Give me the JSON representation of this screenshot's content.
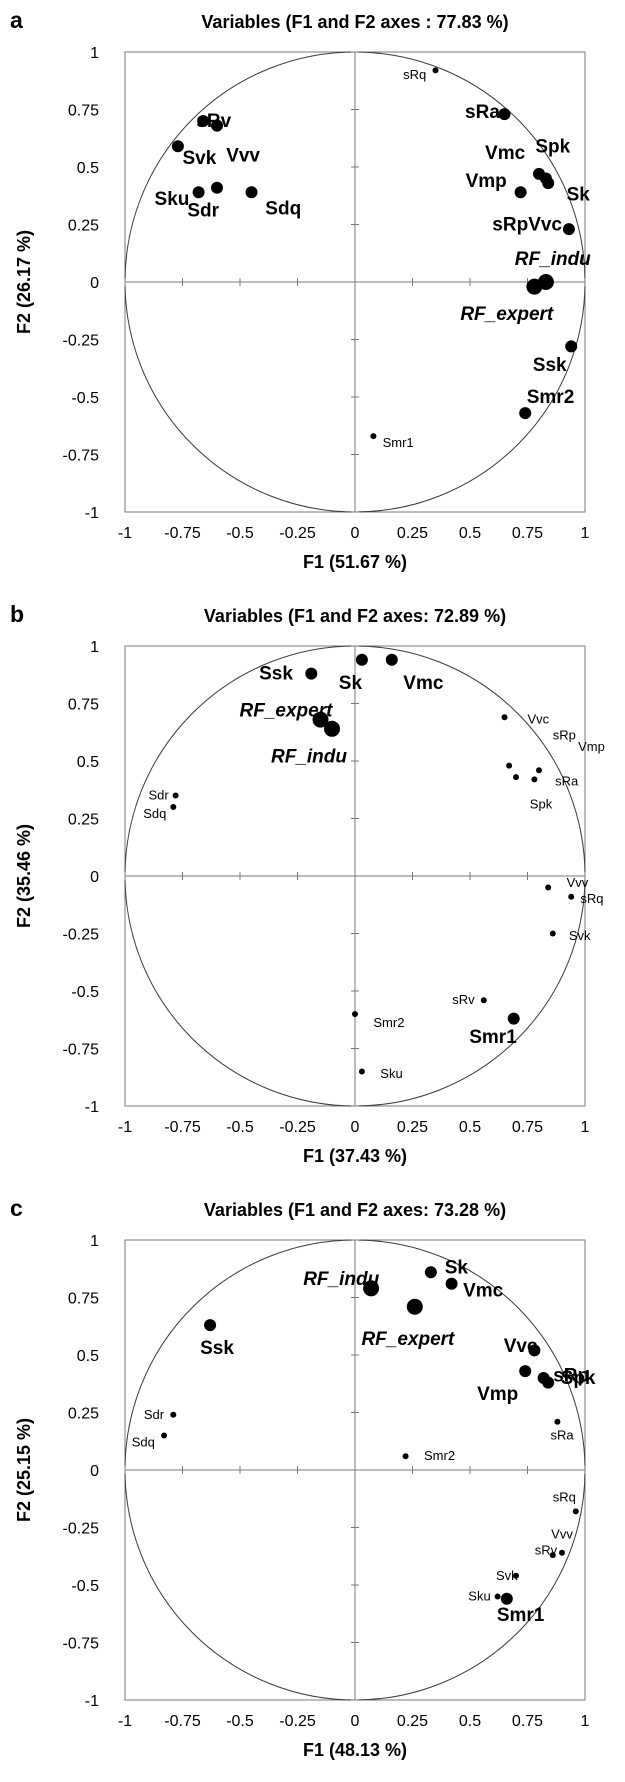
{
  "chart_data": [
    {
      "type": "scatter",
      "panel_letter": "a",
      "title": "Variables (F1 and F2 axes : 77.83 %)",
      "xlabel": "F1 (51.67 %)",
      "ylabel": "F2 (26.17 %)",
      "xlim": [
        -1,
        1
      ],
      "ylim": [
        -1,
        1
      ],
      "x_ticks": [
        "-1",
        "-0.75",
        "-0.5",
        "-0.25",
        "0",
        "0.25",
        "0.5",
        "0.75",
        "1"
      ],
      "y_ticks": [
        "1",
        "0.75",
        "0.5",
        "0.25",
        "0",
        "-0.25",
        "-0.5",
        "-0.75",
        "-1"
      ],
      "points": [
        {
          "label": "sRq",
          "x": 0.35,
          "y": 0.92,
          "size": "small",
          "italic": false,
          "lx": -0.04,
          "ly": -0.02,
          "anchor": "end"
        },
        {
          "label": "sRa",
          "x": 0.65,
          "y": 0.73,
          "size": "large",
          "italic": false,
          "lx": -0.02,
          "ly": 0.01,
          "anchor": "end"
        },
        {
          "label": "sRv",
          "x": -0.66,
          "y": 0.7,
          "size": "large",
          "italic": false,
          "lx": -0.03,
          "ly": 0.0,
          "anchor": "start"
        },
        {
          "label": "Vvv",
          "x": -0.6,
          "y": 0.68,
          "size": "large",
          "italic": false,
          "lx": 0.04,
          "ly": -0.13,
          "anchor": "start"
        },
        {
          "label": "Svk",
          "x": -0.77,
          "y": 0.59,
          "size": "large",
          "italic": false,
          "lx": 0.02,
          "ly": -0.05,
          "anchor": "start"
        },
        {
          "label": "Sku",
          "x": -0.68,
          "y": 0.39,
          "size": "large",
          "italic": false,
          "lx": -0.04,
          "ly": -0.03,
          "anchor": "end"
        },
        {
          "label": "Sdr",
          "x": -0.6,
          "y": 0.41,
          "size": "large",
          "italic": false,
          "lx": -0.06,
          "ly": -0.1,
          "anchor": "middle"
        },
        {
          "label": "Sdq",
          "x": -0.45,
          "y": 0.39,
          "size": "large",
          "italic": false,
          "lx": 0.06,
          "ly": -0.07,
          "anchor": "start"
        },
        {
          "label": "Vmc",
          "x": 0.8,
          "y": 0.47,
          "size": "large",
          "italic": false,
          "lx": -0.06,
          "ly": 0.09,
          "anchor": "end"
        },
        {
          "label": "Spk",
          "x": 0.84,
          "y": 0.43,
          "size": "large",
          "italic": false,
          "lx": 0.02,
          "ly": 0.16,
          "anchor": "middle"
        },
        {
          "label": "Sk",
          "x": 0.83,
          "y": 0.45,
          "size": "large",
          "italic": false,
          "lx": 0.09,
          "ly": -0.07,
          "anchor": "start"
        },
        {
          "label": "Vmp",
          "x": 0.72,
          "y": 0.39,
          "size": "large",
          "italic": false,
          "lx": -0.06,
          "ly": 0.05,
          "anchor": "end"
        },
        {
          "label": "sRpVvc",
          "x": 0.93,
          "y": 0.23,
          "size": "large",
          "italic": false,
          "lx": -0.03,
          "ly": 0.02,
          "anchor": "end"
        },
        {
          "label": "RF_indu",
          "x": 0.83,
          "y": 0.0,
          "size": "xlarge",
          "italic": true,
          "lx": 0.03,
          "ly": 0.1,
          "anchor": "middle"
        },
        {
          "label": "RF_expert",
          "x": 0.78,
          "y": -0.02,
          "size": "xlarge",
          "italic": true,
          "lx": -0.12,
          "ly": -0.12,
          "anchor": "middle"
        },
        {
          "label": "Ssk",
          "x": 0.94,
          "y": -0.28,
          "size": "large",
          "italic": false,
          "lx": -0.02,
          "ly": -0.08,
          "anchor": "end"
        },
        {
          "label": "Smr2",
          "x": 0.74,
          "y": -0.57,
          "size": "large",
          "italic": false,
          "lx": 0.11,
          "ly": 0.07,
          "anchor": "middle"
        },
        {
          "label": "Smr1",
          "x": 0.08,
          "y": -0.67,
          "size": "small",
          "italic": false,
          "lx": 0.04,
          "ly": -0.03,
          "anchor": "start"
        }
      ]
    },
    {
      "type": "scatter",
      "panel_letter": "b",
      "title": "Variables (F1 and F2 axes: 72.89 %)",
      "xlabel": "F1 (37.43 %)",
      "ylabel": "F2 (35.46 %)",
      "xlim": [
        -1,
        1
      ],
      "ylim": [
        -1,
        1
      ],
      "x_ticks": [
        "-1",
        "-0.75",
        "-0.5",
        "-0.25",
        "0",
        "0.25",
        "0.5",
        "0.75",
        "1"
      ],
      "y_ticks": [
        "1",
        "0.75",
        "0.5",
        "0.25",
        "0",
        "-0.25",
        "-0.5",
        "-0.75",
        "-1"
      ],
      "points": [
        {
          "label": "Ssk",
          "x": -0.19,
          "y": 0.88,
          "size": "large",
          "italic": false,
          "lx": -0.08,
          "ly": 0.0,
          "anchor": "end"
        },
        {
          "label": "Sk",
          "x": 0.03,
          "y": 0.94,
          "size": "large",
          "italic": false,
          "lx": -0.05,
          "ly": -0.1,
          "anchor": "middle"
        },
        {
          "label": "Vmc",
          "x": 0.16,
          "y": 0.94,
          "size": "large",
          "italic": false,
          "lx": 0.05,
          "ly": -0.1,
          "anchor": "start"
        },
        {
          "label": "RF_expert",
          "x": -0.15,
          "y": 0.68,
          "size": "xlarge",
          "italic": true,
          "lx": -0.15,
          "ly": 0.04,
          "anchor": "middle"
        },
        {
          "label": "RF_indu",
          "x": -0.1,
          "y": 0.64,
          "size": "xlarge",
          "italic": true,
          "lx": -0.1,
          "ly": -0.12,
          "anchor": "middle"
        },
        {
          "label": "Vvc",
          "x": 0.65,
          "y": 0.69,
          "size": "small",
          "italic": false,
          "lx": 0.1,
          "ly": -0.01,
          "anchor": "start"
        },
        {
          "label": "sRp",
          "x": 0.8,
          "y": 0.46,
          "size": "small",
          "italic": false,
          "lx": 0.06,
          "ly": 0.15,
          "anchor": "start"
        },
        {
          "label": "Vmp",
          "x": 0.67,
          "y": 0.48,
          "size": "small",
          "italic": false,
          "lx": 0.3,
          "ly": 0.08,
          "anchor": "start"
        },
        {
          "label": "sRa",
          "x": 0.78,
          "y": 0.42,
          "size": "small",
          "italic": false,
          "lx": 0.09,
          "ly": -0.01,
          "anchor": "start"
        },
        {
          "label": "Spk",
          "x": 0.7,
          "y": 0.43,
          "size": "small",
          "italic": false,
          "lx": 0.06,
          "ly": -0.12,
          "anchor": "start"
        },
        {
          "label": "Sdr",
          "x": -0.78,
          "y": 0.35,
          "size": "small",
          "italic": false,
          "lx": -0.03,
          "ly": 0.0,
          "anchor": "end"
        },
        {
          "label": "Sdq",
          "x": -0.79,
          "y": 0.3,
          "size": "small",
          "italic": false,
          "lx": -0.03,
          "ly": -0.03,
          "anchor": "end"
        },
        {
          "label": "Vvv",
          "x": 0.84,
          "y": -0.05,
          "size": "small",
          "italic": false,
          "lx": 0.08,
          "ly": 0.02,
          "anchor": "start"
        },
        {
          "label": "sRq",
          "x": 0.94,
          "y": -0.09,
          "size": "small",
          "italic": false,
          "lx": 0.04,
          "ly": -0.01,
          "anchor": "start"
        },
        {
          "label": "Svk",
          "x": 0.86,
          "y": -0.25,
          "size": "small",
          "italic": false,
          "lx": 0.07,
          "ly": -0.01,
          "anchor": "start"
        },
        {
          "label": "sRv",
          "x": 0.56,
          "y": -0.54,
          "size": "small",
          "italic": false,
          "lx": -0.04,
          "ly": 0.0,
          "anchor": "end"
        },
        {
          "label": "Smr1",
          "x": 0.69,
          "y": -0.62,
          "size": "large",
          "italic": false,
          "lx": -0.09,
          "ly": -0.08,
          "anchor": "middle"
        },
        {
          "label": "Smr2",
          "x": 0.0,
          "y": -0.6,
          "size": "small",
          "italic": false,
          "lx": 0.08,
          "ly": -0.04,
          "anchor": "start"
        },
        {
          "label": "Sku",
          "x": 0.03,
          "y": -0.85,
          "size": "small",
          "italic": false,
          "lx": 0.08,
          "ly": -0.01,
          "anchor": "start"
        }
      ]
    },
    {
      "type": "scatter",
      "panel_letter": "c",
      "title": "Variables (F1 and F2 axes: 73.28 %)",
      "xlabel": "F1 (48.13 %)",
      "ylabel": "F2 (25.15 %)",
      "xlim": [
        -1,
        1
      ],
      "ylim": [
        -1,
        1
      ],
      "x_ticks": [
        "-1",
        "-0.75",
        "-0.5",
        "-0.25",
        "0",
        "0.25",
        "0.5",
        "0.75",
        "1"
      ],
      "y_ticks": [
        "1",
        "0.75",
        "0.5",
        "0.25",
        "0",
        "-0.25",
        "-0.5",
        "-0.75",
        "-1"
      ],
      "points": [
        {
          "label": "RF_indu",
          "x": 0.07,
          "y": 0.79,
          "size": "xlarge",
          "italic": true,
          "lx": -0.13,
          "ly": 0.04,
          "anchor": "middle"
        },
        {
          "label": "Sk",
          "x": 0.33,
          "y": 0.86,
          "size": "large",
          "italic": false,
          "lx": 0.06,
          "ly": 0.02,
          "anchor": "start"
        },
        {
          "label": "Vmc",
          "x": 0.42,
          "y": 0.81,
          "size": "large",
          "italic": false,
          "lx": 0.05,
          "ly": -0.03,
          "anchor": "start"
        },
        {
          "label": "RF_expert",
          "x": 0.26,
          "y": 0.71,
          "size": "xlarge",
          "italic": true,
          "lx": -0.03,
          "ly": -0.14,
          "anchor": "middle"
        },
        {
          "label": "Ssk",
          "x": -0.63,
          "y": 0.63,
          "size": "large",
          "italic": false,
          "lx": 0.03,
          "ly": -0.1,
          "anchor": "middle"
        },
        {
          "label": "Vvc",
          "x": 0.78,
          "y": 0.52,
          "size": "large",
          "italic": false,
          "lx": -0.06,
          "ly": 0.02,
          "anchor": "middle"
        },
        {
          "label": "sRp",
          "x": 0.82,
          "y": 0.4,
          "size": "large",
          "italic": false,
          "lx": 0.12,
          "ly": 0.01,
          "anchor": "middle"
        },
        {
          "label": "Spk",
          "x": 0.84,
          "y": 0.38,
          "size": "large",
          "italic": false,
          "lx": 0.13,
          "ly": 0.02,
          "anchor": "middle"
        },
        {
          "label": "Vmp",
          "x": 0.74,
          "y": 0.43,
          "size": "large",
          "italic": false,
          "lx": -0.03,
          "ly": -0.1,
          "anchor": "end"
        },
        {
          "label": "sRa",
          "x": 0.88,
          "y": 0.21,
          "size": "small",
          "italic": false,
          "lx": 0.02,
          "ly": -0.06,
          "anchor": "middle"
        },
        {
          "label": "Sdr",
          "x": -0.79,
          "y": 0.24,
          "size": "small",
          "italic": false,
          "lx": -0.04,
          "ly": 0.0,
          "anchor": "end"
        },
        {
          "label": "Sdq",
          "x": -0.83,
          "y": 0.15,
          "size": "small",
          "italic": false,
          "lx": -0.04,
          "ly": -0.03,
          "anchor": "end"
        },
        {
          "label": "Smr2",
          "x": 0.22,
          "y": 0.06,
          "size": "small",
          "italic": false,
          "lx": 0.08,
          "ly": 0.0,
          "anchor": "start"
        },
        {
          "label": "sRq",
          "x": 0.96,
          "y": -0.18,
          "size": "small",
          "italic": false,
          "lx": -0.05,
          "ly": 0.06,
          "anchor": "middle"
        },
        {
          "label": "Vvv",
          "x": 0.9,
          "y": -0.36,
          "size": "small",
          "italic": false,
          "lx": 0.0,
          "ly": 0.08,
          "anchor": "middle"
        },
        {
          "label": "sRv",
          "x": 0.86,
          "y": -0.37,
          "size": "small",
          "italic": false,
          "lx": -0.03,
          "ly": 0.02,
          "anchor": "middle"
        },
        {
          "label": "Svk",
          "x": 0.7,
          "y": -0.46,
          "size": "small",
          "italic": false,
          "lx": -0.04,
          "ly": 0.0,
          "anchor": "middle"
        },
        {
          "label": "Sku",
          "x": 0.62,
          "y": -0.55,
          "size": "small",
          "italic": false,
          "lx": -0.03,
          "ly": 0.0,
          "anchor": "end"
        },
        {
          "label": "Smr1",
          "x": 0.66,
          "y": -0.56,
          "size": "large",
          "italic": false,
          "lx": 0.06,
          "ly": -0.07,
          "anchor": "middle"
        }
      ]
    }
  ]
}
